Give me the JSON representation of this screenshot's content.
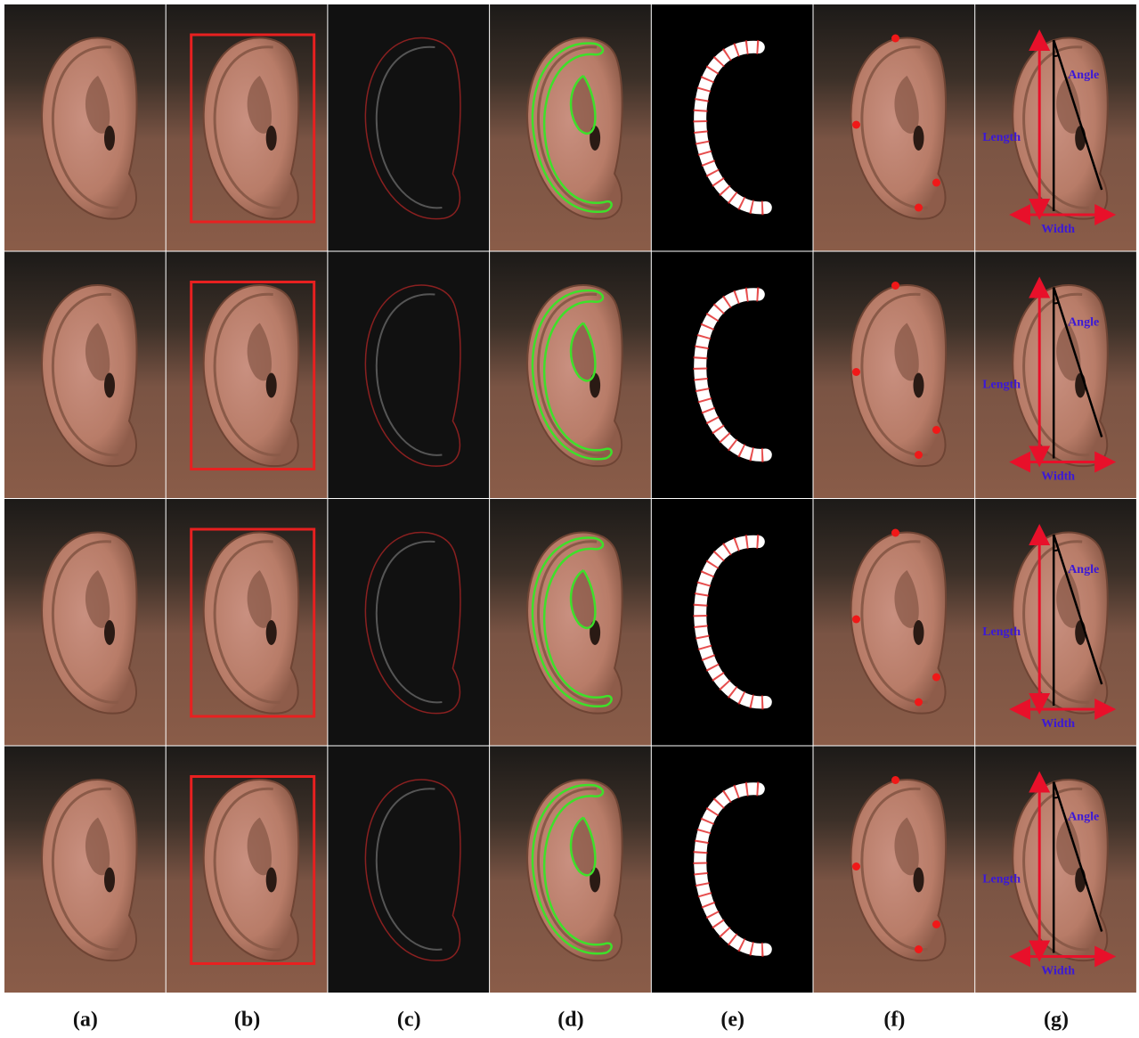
{
  "panel_labels": [
    "(a)",
    "(b)",
    "(c)",
    "(d)",
    "(e)",
    "(f)",
    "(g)"
  ],
  "rows": [
    {
      "angle": "Angle",
      "length": "Length",
      "width": "Width"
    },
    {
      "angle": "Angle",
      "length": "Length",
      "width": "Width"
    },
    {
      "angle": "Angle",
      "length": "Length",
      "width": "Width"
    },
    {
      "angle": "Angle",
      "length": "Length",
      "width": "Width"
    }
  ]
}
